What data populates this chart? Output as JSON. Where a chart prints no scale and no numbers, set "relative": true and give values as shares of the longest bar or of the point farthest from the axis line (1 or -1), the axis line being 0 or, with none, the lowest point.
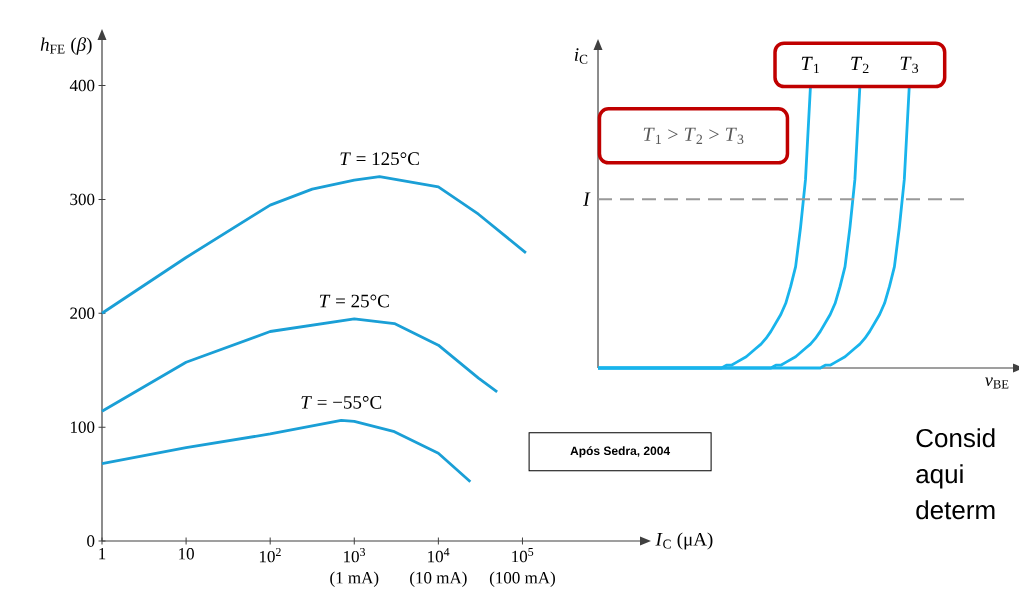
{
  "chart_data": [
    {
      "type": "line",
      "xlabel": "*I*$_{C}$ (μA)",
      "ylabel": "*h*$_{FE}$ (*β*)",
      "log": "x",
      "legend": false,
      "grid": false,
      "xlim": [
        1,
        2500000
      ],
      "ylim": [
        0,
        440
      ],
      "xticks": [
        1,
        10,
        {
          "value": 100,
          "label": "10$^{2}$"
        },
        {
          "value": 1000,
          "label": "10$^{3}$"
        },
        {
          "value": 10000,
          "label": "10$^{4}$"
        },
        {
          "value": 100000,
          "label": "10$^{5}$"
        }
      ],
      "yticks": [
        0,
        100,
        200,
        300,
        400
      ],
      "series": [
        {
          "name": "*T* = 125°C",
          "color": "#1a9fd6",
          "x": [
            1,
            10,
            100,
            316,
            1000,
            2000,
            10000,
            30000,
            110000
          ],
          "values": [
            200,
            249,
            295,
            309,
            317,
            320,
            311,
            287,
            253
          ]
        },
        {
          "name": "*T* = 25°C",
          "color": "#1a9fd6",
          "x": [
            1,
            10,
            100,
            1000,
            3000,
            10000,
            30000,
            50000
          ],
          "values": [
            114,
            157,
            184,
            195,
            191,
            172,
            143,
            131
          ]
        },
        {
          "name": "*T* = −55°C",
          "color": "#1a9fd6",
          "x": [
            1,
            10,
            100,
            700,
            1000,
            3000,
            10000,
            24000
          ],
          "values": [
            68,
            82,
            94,
            106,
            105,
            96,
            77,
            52
          ]
        }
      ],
      "annotations": [
        "(1 mA)",
        "(10 mA)",
        "(100 mA)",
        "**Após Sedra, 2004**"
      ]
    },
    {
      "type": "line",
      "relative": true,
      "xlabel": "*v*$_{BE}$",
      "ylabel": "*i*$_{C}$",
      "legend": false,
      "grid": false,
      "categories": [
        null,
        null,
        null,
        null,
        null,
        null,
        null,
        null,
        null,
        null,
        null,
        null,
        null,
        null,
        null,
        null,
        null,
        null,
        null,
        null,
        null,
        null,
        null,
        null,
        null,
        null,
        null,
        null,
        null,
        null,
        null,
        null,
        null,
        null,
        null,
        null,
        null,
        null,
        null,
        null,
        null,
        null,
        null,
        null,
        null,
        null,
        null,
        null,
        null,
        null,
        null,
        null,
        null,
        null,
        null,
        null,
        null,
        null,
        null,
        null,
        null,
        null,
        null,
        null,
        null,
        null,
        null,
        null,
        null,
        null,
        null,
        null,
        null,
        null,
        null,
        null,
        null,
        null,
        null,
        null,
        null,
        null,
        null,
        null,
        null
      ],
      "ref_lines": [
        {
          "axis": "y",
          "value": 0.6,
          "label": "*I*",
          "color": "#999999",
          "line_style": "dashed"
        }
      ],
      "series": [
        {
          "name": "*T*$_{1}$",
          "color": "#18b4ec",
          "values": [
            0,
            0,
            0,
            0,
            0,
            0,
            0,
            0,
            0,
            0,
            0,
            0,
            0,
            0,
            0,
            0,
            0,
            0,
            0,
            0,
            0,
            0,
            0,
            0,
            0,
            0,
            0.01,
            0.01,
            0.02,
            0.03,
            0.04,
            0.055,
            0.07,
            0.085,
            0.105,
            0.13,
            0.16,
            0.19,
            0.23,
            0.29,
            0.36,
            0.5,
            0.67,
            1,
            null,
            null,
            null,
            null,
            null,
            null,
            null,
            null,
            null,
            null,
            null,
            null,
            null,
            null,
            null,
            null,
            null,
            null,
            null,
            null,
            null,
            null,
            null,
            null,
            null,
            null,
            null,
            null,
            null,
            null,
            null,
            null,
            null,
            null,
            null,
            null,
            null,
            null,
            null,
            null,
            null
          ]
        },
        {
          "name": "*T*$_{2}$",
          "color": "#18b4ec",
          "values": [
            0,
            0,
            0,
            0,
            0,
            0,
            0,
            0,
            0,
            0,
            0,
            0,
            0,
            0,
            0,
            0,
            0,
            0,
            0,
            0,
            0,
            0,
            0,
            0,
            0,
            0,
            0,
            0,
            0,
            0,
            0,
            0,
            0,
            0,
            0,
            0,
            0.01,
            0.01,
            0.02,
            0.03,
            0.04,
            0.055,
            0.07,
            0.085,
            0.105,
            0.13,
            0.16,
            0.19,
            0.23,
            0.29,
            0.36,
            0.5,
            0.67,
            1,
            null,
            null,
            null,
            null,
            null,
            null,
            null,
            null,
            null,
            null,
            null,
            null,
            null,
            null,
            null,
            null,
            null,
            null,
            null,
            null,
            null,
            null,
            null,
            null,
            null,
            null,
            null,
            null,
            null,
            null,
            null
          ]
        },
        {
          "name": "*T*$_{3}$",
          "color": "#18b4ec",
          "values": [
            0,
            0,
            0,
            0,
            0,
            0,
            0,
            0,
            0,
            0,
            0,
            0,
            0,
            0,
            0,
            0,
            0,
            0,
            0,
            0,
            0,
            0,
            0,
            0,
            0,
            0,
            0,
            0,
            0,
            0,
            0,
            0,
            0,
            0,
            0,
            0,
            0,
            0,
            0,
            0,
            0,
            0,
            0,
            0,
            0,
            0,
            0.01,
            0.01,
            0.02,
            0.03,
            0.04,
            0.055,
            0.07,
            0.085,
            0.105,
            0.13,
            0.16,
            0.19,
            0.23,
            0.29,
            0.36,
            0.5,
            0.67,
            1,
            null,
            null,
            null,
            null,
            null,
            null,
            null,
            null,
            null,
            null,
            null,
            null,
            null,
            null,
            null,
            null,
            null,
            null,
            null,
            null,
            null
          ]
        }
      ],
      "annotations": [
        "*T*$_{1}$ > *T*$_{2}$ > *T*$_{3}$",
        "Consid aqui determ"
      ]
    }
  ]
}
